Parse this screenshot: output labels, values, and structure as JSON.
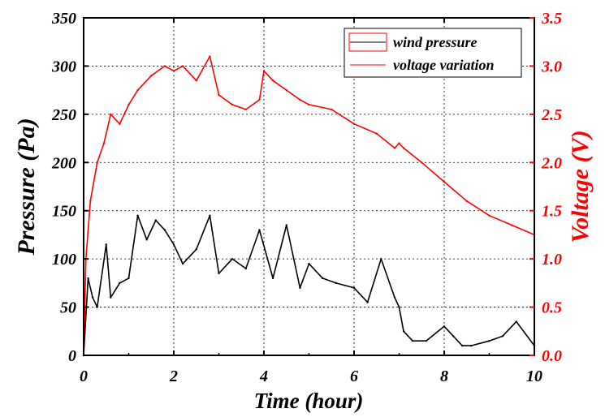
{
  "chart_data": {
    "type": "line",
    "title": "",
    "xlabel": "Time (hour)",
    "ylabel": "Pressure (Pa)",
    "y2label": "Voltage (V)",
    "xlim": [
      0,
      10
    ],
    "ylim": [
      0,
      350
    ],
    "y2lim": [
      0,
      3.5
    ],
    "xticks": [
      0,
      2,
      4,
      6,
      8,
      10
    ],
    "yticks": [
      0,
      50,
      100,
      150,
      200,
      250,
      300,
      350
    ],
    "y2ticks": [
      0.0,
      0.5,
      1.0,
      1.5,
      2.0,
      2.5,
      3.0,
      3.5
    ],
    "xticklabels": [
      "0",
      "2",
      "4",
      "6",
      "8",
      "10"
    ],
    "yticklabels": [
      "0",
      "50",
      "100",
      "150",
      "200",
      "250",
      "300",
      "350"
    ],
    "y2ticklabels": [
      "0.0",
      "0.5",
      "1.0",
      "1.5",
      "2.0",
      "2.5",
      "3.0",
      "3.5"
    ],
    "grid": true,
    "legend_position": "top-right",
    "colors": {
      "pressure": "#000000",
      "voltage": "#ff0000",
      "grid": "#000000"
    },
    "series": [
      {
        "name": "wind pressure",
        "axis": "left",
        "color": "#000000",
        "x": [
          0,
          0.1,
          0.2,
          0.3,
          0.5,
          0.6,
          0.8,
          1.0,
          1.2,
          1.4,
          1.6,
          1.8,
          2.0,
          2.2,
          2.5,
          2.8,
          3.0,
          3.3,
          3.6,
          3.9,
          4.2,
          4.5,
          4.8,
          5.0,
          5.3,
          5.6,
          6.0,
          6.3,
          6.6,
          6.9,
          7.0,
          7.1,
          7.3,
          7.6,
          8.0,
          8.2,
          8.4,
          8.6,
          9.0,
          9.3,
          9.6,
          10.0
        ],
        "values": [
          0,
          80,
          60,
          50,
          115,
          60,
          75,
          80,
          145,
          120,
          140,
          130,
          115,
          95,
          110,
          145,
          85,
          100,
          90,
          130,
          80,
          135,
          70,
          95,
          80,
          75,
          70,
          55,
          100,
          60,
          50,
          25,
          15,
          15,
          30,
          20,
          10,
          10,
          15,
          20,
          35,
          10
        ]
      },
      {
        "name": "voltage variation",
        "axis": "right",
        "color": "#ff0000",
        "x": [
          0,
          0.05,
          0.15,
          0.3,
          0.45,
          0.6,
          0.8,
          1.0,
          1.2,
          1.5,
          1.8,
          2.0,
          2.2,
          2.5,
          2.8,
          3.0,
          3.3,
          3.6,
          3.9,
          4.0,
          4.2,
          4.5,
          4.8,
          5.0,
          5.5,
          6.0,
          6.5,
          6.9,
          7.0,
          7.1,
          7.5,
          8.0,
          8.5,
          9.0,
          9.5,
          10.0
        ],
        "values": [
          0.0,
          1.0,
          1.6,
          2.0,
          2.2,
          2.5,
          2.4,
          2.6,
          2.75,
          2.9,
          3.0,
          2.95,
          3.0,
          2.85,
          3.1,
          2.7,
          2.6,
          2.55,
          2.65,
          2.95,
          2.85,
          2.75,
          2.65,
          2.6,
          2.55,
          2.4,
          2.3,
          2.15,
          2.2,
          2.15,
          2.0,
          1.8,
          1.6,
          1.45,
          1.35,
          1.25
        ]
      }
    ]
  }
}
